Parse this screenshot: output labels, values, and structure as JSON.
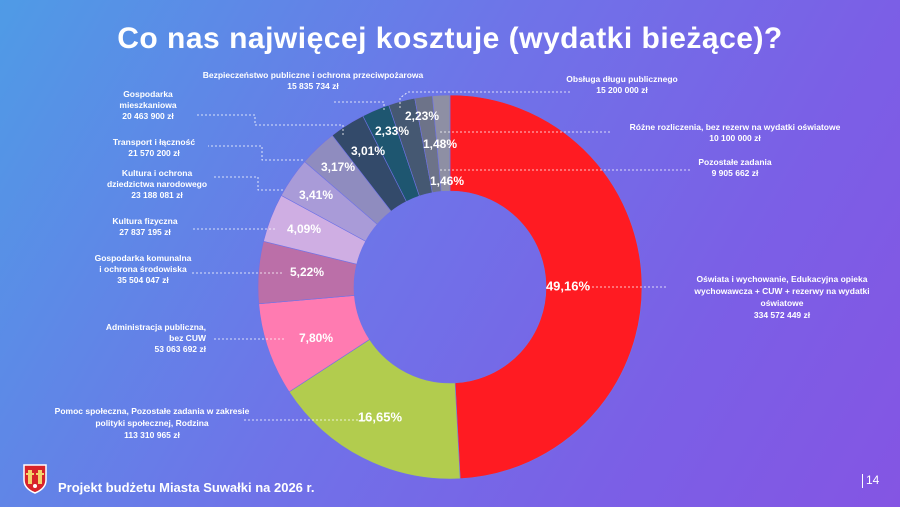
{
  "title": "Co nas najwięcej kosztuje (wydatki bieżące)?",
  "footer": {
    "project_label": "Projekt budżetu Miasta Suwałki na 2026 r.",
    "page_number": "14"
  },
  "colors": {
    "background_start": "#4f9be6",
    "background_end": "#8455e3"
  },
  "chart_data": {
    "type": "pie",
    "style": "donut",
    "title": "Co nas najwięcej kosztuje (wydatki bieżące)?",
    "slices": [
      {
        "pct_label": "49,16%",
        "value": 49.16,
        "color": "#ff1b22",
        "label": [
          "Oświata i wychowanie, Edukacyjna opieka",
          "wychowawcza + CUW + rezerwy na wydatki",
          "oświatowe"
        ],
        "amount": "334 572 449 zł"
      },
      {
        "pct_label": "16,65%",
        "value": 16.65,
        "color": "#b2cc4e",
        "label": [
          "Pomoc społeczna, Pozostałe zadania w zakresie",
          "polityki społecznej, Rodzina"
        ],
        "amount": "113 310 965 zł"
      },
      {
        "pct_label": "7,80%",
        "value": 7.8,
        "color": "#ff7bb1",
        "label": [
          "Administracja publiczna,",
          "bez CUW"
        ],
        "amount": "53 063 692 zł"
      },
      {
        "pct_label": "5,22%",
        "value": 5.22,
        "color": "#bb6fa8",
        "label": [
          "Gospodarka komunalna",
          "i ochrona środowiska"
        ],
        "amount": "35 504 047 zł"
      },
      {
        "pct_label": "4,09%",
        "value": 4.09,
        "color": "#cfaee3",
        "label": [
          "Kultura fizyczna"
        ],
        "amount": "27 837 195 zł"
      },
      {
        "pct_label": "3,41%",
        "value": 3.41,
        "color": "#a99bd8",
        "label": [
          "Kultura i ochrona",
          "dziedzictwa narodowego"
        ],
        "amount": "23 188 081 zł"
      },
      {
        "pct_label": "3,17%",
        "value": 3.17,
        "color": "#8f8cbf",
        "label": [
          "Transport i łączność"
        ],
        "amount": "21 570 200 zł"
      },
      {
        "pct_label": "3,01%",
        "value": 3.01,
        "color": "#334a6a",
        "label": [
          "Gospodarka",
          "mieszkaniowa"
        ],
        "amount": "20 463 900 zł"
      },
      {
        "pct_label": "2,33%",
        "value": 2.33,
        "color": "#1e5670",
        "label": [
          "Bezpieczeństwo publiczne i ochrona przeciwpożarowa"
        ],
        "amount": "15 835 734 zł"
      },
      {
        "pct_label": "2,23%",
        "value": 2.23,
        "color": "#455872",
        "label": [
          "Obsługa długu publicznego"
        ],
        "amount": "15 200 000 zł"
      },
      {
        "pct_label": "1,48%",
        "value": 1.48,
        "color": "#6d7389",
        "label": [
          "Różne rozliczenia, bez rezerw na wydatki oświatowe"
        ],
        "amount": "10 100 000 zł"
      },
      {
        "pct_label": "1,46%",
        "value": 1.46,
        "color": "#8e8fa4",
        "label": [
          "Pozostałe zadania"
        ],
        "amount": "9 905 662 zł"
      }
    ]
  }
}
